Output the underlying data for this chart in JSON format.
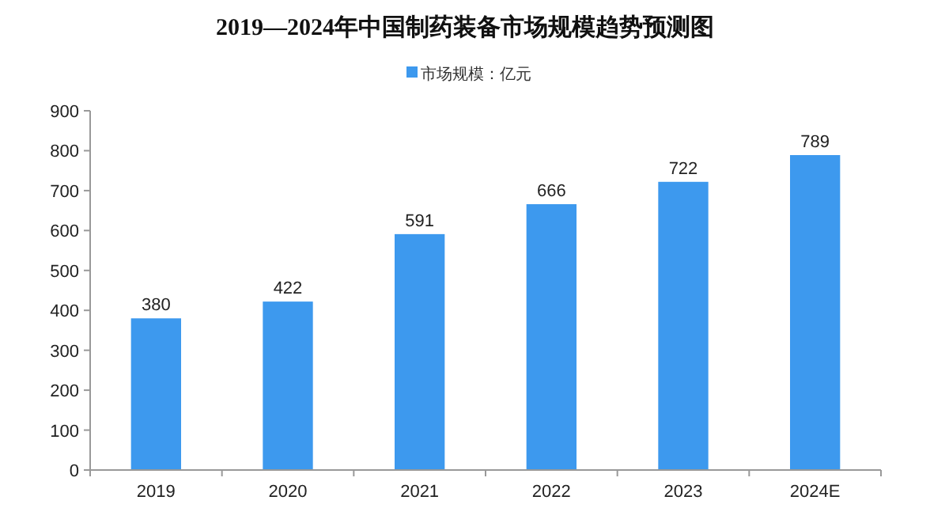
{
  "chart_data": {
    "type": "bar",
    "title": "2019—2024年中国制药装备市场规模趋势预测图",
    "categories": [
      "2019",
      "2020",
      "2021",
      "2022",
      "2023",
      "2024E"
    ],
    "series": [
      {
        "name": "市场规模：亿元",
        "color": "#3d99ee",
        "values": [
          380,
          422,
          591,
          666,
          722,
          789
        ]
      }
    ],
    "ylim": [
      0,
      900
    ],
    "yticks": [
      0,
      100,
      200,
      300,
      400,
      500,
      600,
      700,
      800,
      900
    ],
    "data_labels": true,
    "legend": "top",
    "grid": false
  }
}
